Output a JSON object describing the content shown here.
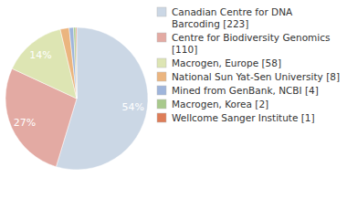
{
  "chart_data": {
    "type": "pie",
    "categories": [
      "Canadian Centre for DNA Barcoding [223]",
      "Centre for Biodiversity Genomics [110]",
      "Macrogen, Europe [58]",
      "National Sun Yat-Sen University [8]",
      "Mined from GenBank, NCBI [4]",
      "Macrogen, Korea [2]",
      "Wellcome Sanger Institute [1]"
    ],
    "values": [
      54.4,
      27.1,
      14.3,
      2.0,
      1.0,
      0.5,
      0.2
    ],
    "value_labels": [
      "54%",
      "27%",
      "14%",
      null,
      null,
      null,
      null
    ],
    "colors": [
      "#cbd7e5",
      "#e3aaa3",
      "#dde5b3",
      "#ebb57f",
      "#9fb5db",
      "#a8c98c",
      "#de7d58"
    ],
    "data_labels": true,
    "legend": "right"
  }
}
